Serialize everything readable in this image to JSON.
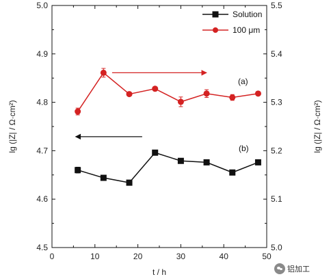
{
  "chart_data": {
    "type": "line",
    "xlabel": "t / h",
    "ylabel_left": "lg (|Z| / Ω·cm²)",
    "ylabel_right": "lg (|Z| / Ω·cm²)",
    "xlim": [
      0,
      50
    ],
    "ylim_left": [
      4.5,
      5.0
    ],
    "ylim_right": [
      5.0,
      5.5
    ],
    "x_ticks": [
      "0",
      "10",
      "20",
      "30",
      "40",
      "50"
    ],
    "y_ticks_left": [
      "4.5",
      "4.6",
      "4.7",
      "4.8",
      "4.9",
      "5.0"
    ],
    "y_ticks_right": [
      "5.0",
      "5.1",
      "5.2",
      "5.3",
      "5.4",
      "5.5"
    ],
    "grid": false,
    "legend_position": "top-right",
    "series": [
      {
        "name": "Solution",
        "axis": "left",
        "color": "#111111",
        "marker": "square",
        "x": [
          6,
          12,
          18,
          24,
          30,
          36,
          42,
          48
        ],
        "y": [
          4.66,
          4.644,
          4.634,
          4.696,
          4.679,
          4.676,
          4.655,
          4.676
        ],
        "err": [
          0.006,
          0.003,
          0.004,
          0.005,
          0.005,
          0.003,
          0.003,
          0.003
        ]
      },
      {
        "name": "100 μm",
        "axis": "right",
        "color": "#d42222",
        "marker": "circle",
        "x": [
          6,
          12,
          18,
          24,
          30,
          36,
          42,
          48
        ],
        "y": [
          5.281,
          5.361,
          5.317,
          5.328,
          5.301,
          5.318,
          5.31,
          5.318
        ],
        "err": [
          0.007,
          0.009,
          0.004,
          0.004,
          0.01,
          0.008,
          0.006,
          0.004
        ]
      }
    ],
    "annotations": [
      {
        "text": "(a)",
        "series": "100 μm",
        "arrow": "right",
        "arrow_x": [
          14,
          36
        ],
        "arrow_y": 4.861
      },
      {
        "text": "(b)",
        "series": "Solution",
        "arrow": "left",
        "arrow_x": [
          21,
          5.5
        ],
        "arrow_y": 4.729
      }
    ]
  },
  "watermark": {
    "text": "铝加工",
    "icon": "wechat-icon"
  }
}
